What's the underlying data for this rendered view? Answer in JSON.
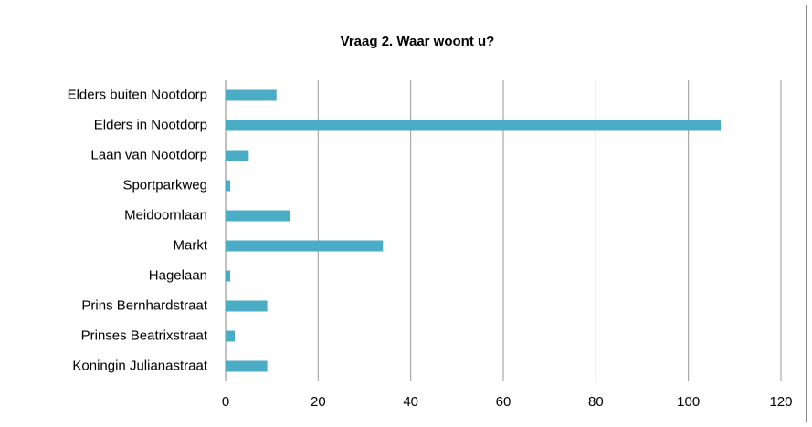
{
  "chart_data": {
    "type": "barh",
    "title": "Vraag 2. Waar woont u?",
    "categories": [
      "Elders buiten Nootdorp",
      "Elders in Nootdorp",
      "Laan van Nootdorp",
      "Sportparkweg",
      "Meidoornlaan",
      "Markt",
      "Hagelaan",
      "Prins Bernhardstraat",
      "Prinses Beatrixstraat",
      "Koningin Julianastraat"
    ],
    "values": [
      11,
      107,
      5,
      1,
      14,
      34,
      1,
      9,
      2,
      9
    ],
    "color": "#4bacc6",
    "xlim": [
      0,
      120
    ],
    "xticks": [
      0,
      20,
      40,
      60,
      80,
      100,
      120
    ],
    "grid": true
  }
}
